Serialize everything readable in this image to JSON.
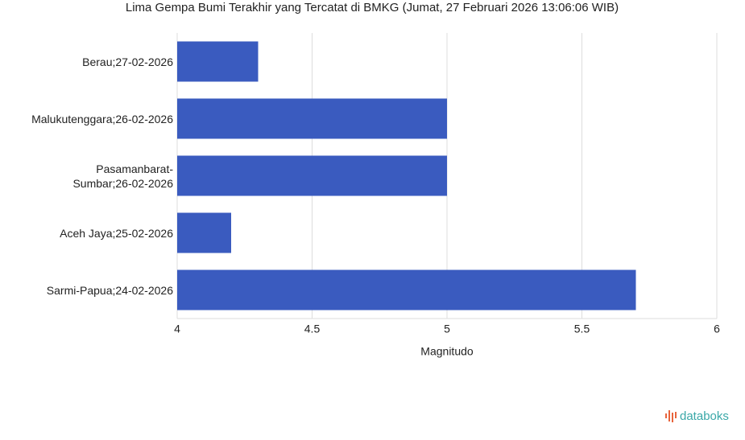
{
  "chart_data": {
    "type": "hbar",
    "title": "Lima Gempa Bumi Terakhir yang Tercatat di BMKG (Jumat, 27 Februari 2026 13:06:06 WIB)",
    "x_label": "Magnitudo",
    "categories": [
      "Berau;27-02-2026",
      "Malukutenggara;26-02-2026",
      "Pasamanbarat-Sumbar;26-02-2026",
      "Aceh Jaya;25-02-2026",
      "Sarmi-Papua;24-02-2026"
    ],
    "values": [
      4.3,
      5.0,
      5.0,
      4.2,
      5.7
    ],
    "color": "#3a5bbf",
    "xlim": [
      4,
      6
    ],
    "xticks": [
      4,
      4.5,
      5,
      5.5,
      6
    ],
    "grid": true
  },
  "brand": "databoks"
}
